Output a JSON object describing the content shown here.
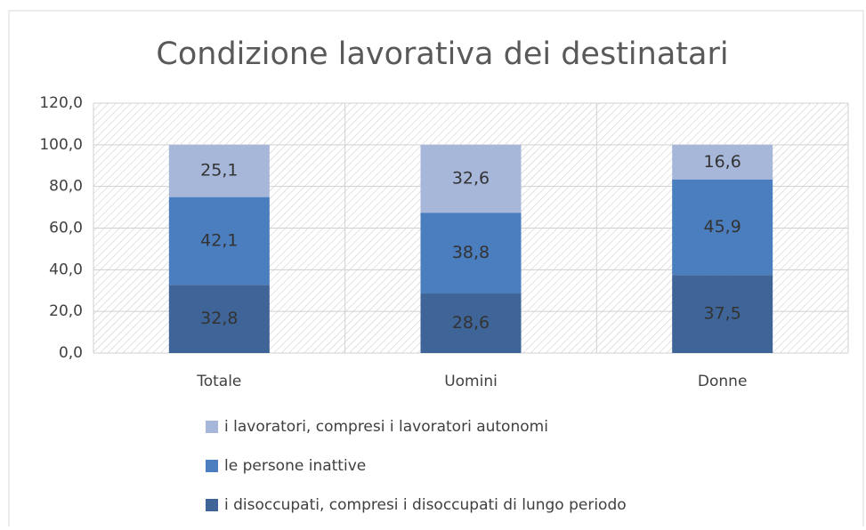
{
  "chart_data": {
    "type": "stacked_bar",
    "title": "Condizione lavorativa dei destinatari",
    "categories": [
      "Totale",
      "Uomini",
      "Donne"
    ],
    "series": [
      {
        "name": "i disoccupati, compresi i disoccupati di lungo periodo",
        "color": "#3f6598",
        "values": [
          32.8,
          28.6,
          37.5
        ],
        "value_labels": [
          "32,8",
          "28,6",
          "37,5"
        ]
      },
      {
        "name": "le persone inattive",
        "color": "#4a7ebe",
        "values": [
          42.1,
          38.8,
          45.9
        ],
        "value_labels": [
          "42,1",
          "38,8",
          "45,9"
        ]
      },
      {
        "name": "i lavoratori, compresi i lavoratori autonomi",
        "color": "#a7b7d9",
        "values": [
          25.1,
          32.6,
          16.6
        ],
        "value_labels": [
          "25,1",
          "32,6",
          "16,6"
        ]
      }
    ],
    "ylim": [
      0,
      120
    ],
    "yticks": [
      {
        "value": 0,
        "label": "0,0"
      },
      {
        "value": 20,
        "label": "20,0"
      },
      {
        "value": 40,
        "label": "40,0"
      },
      {
        "value": 60,
        "label": "60,0"
      },
      {
        "value": 80,
        "label": "80,0"
      },
      {
        "value": 100,
        "label": "100,0"
      },
      {
        "value": 120,
        "label": "120,0"
      }
    ],
    "grid": true,
    "legend": "bottom"
  }
}
